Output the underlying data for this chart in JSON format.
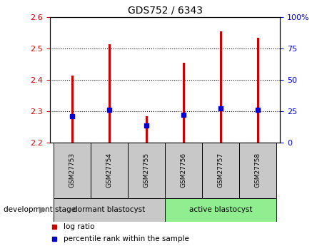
{
  "title": "GDS752 / 6343",
  "samples": [
    "GSM27753",
    "GSM27754",
    "GSM27755",
    "GSM27756",
    "GSM27757",
    "GSM27758"
  ],
  "log_ratio_top": [
    2.415,
    2.515,
    2.285,
    2.455,
    2.555,
    2.535
  ],
  "log_ratio_bottom": [
    2.2,
    2.2,
    2.2,
    2.2,
    2.2,
    2.2
  ],
  "percentile_values": [
    2.284,
    2.305,
    2.255,
    2.29,
    2.31,
    2.305
  ],
  "ylim_left": [
    2.2,
    2.6
  ],
  "ylim_right": [
    0,
    100
  ],
  "yticks_left": [
    2.2,
    2.3,
    2.4,
    2.5,
    2.6
  ],
  "yticks_right": [
    0,
    25,
    50,
    75,
    100
  ],
  "ytick_labels_right": [
    "0",
    "25",
    "50",
    "75",
    "100%"
  ],
  "bar_color": "#cc0000",
  "dot_color": "#0000cc",
  "group1_label": "dormant blastocyst",
  "group2_label": "active blastocyst",
  "sample_box_bg": "#c8c8c8",
  "group1_bg": "#c8c8c8",
  "group2_bg": "#90ee90",
  "stage_label": "development stage",
  "legend_bar_label": "log ratio",
  "legend_dot_label": "percentile rank within the sample",
  "left_axis_color": "#cc0000",
  "right_axis_color": "#0000cc",
  "bar_width": 0.06
}
